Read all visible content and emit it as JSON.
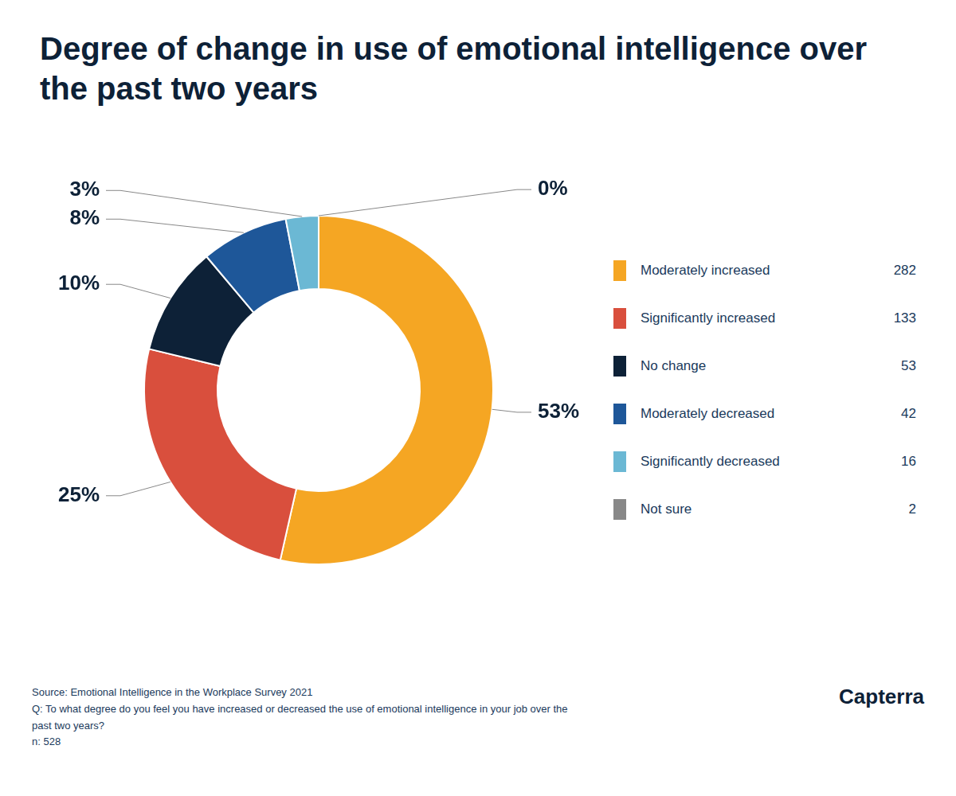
{
  "chart_data": {
    "type": "doughnut",
    "title": "Degree of change in use of emotional intelligence over the past two years",
    "categories": [
      "Moderately increased",
      "Significantly increased",
      "No change",
      "Moderately decreased",
      "Significantly decreased",
      "Not sure"
    ],
    "values": [
      53,
      25,
      10,
      8,
      3,
      0
    ],
    "value_labels": [
      "53%",
      "25%",
      "10%",
      "8%",
      "3%",
      "0%"
    ],
    "counts": [
      282,
      133,
      53,
      42,
      16,
      2
    ],
    "colors": [
      "#f5a623",
      "#d94f3d",
      "#0d2137",
      "#1e5799",
      "#6bb8d4",
      "#888888"
    ],
    "data_labels": true,
    "legend": "right",
    "annotations": [
      "Source: Emotional Intelligence in the Workplace Survey 2021\nQ: To what degree do you feel you have increased or decreased the use of emotional intelligence in your job over the\npast two years?\nn: 528",
      "Capterra"
    ]
  }
}
